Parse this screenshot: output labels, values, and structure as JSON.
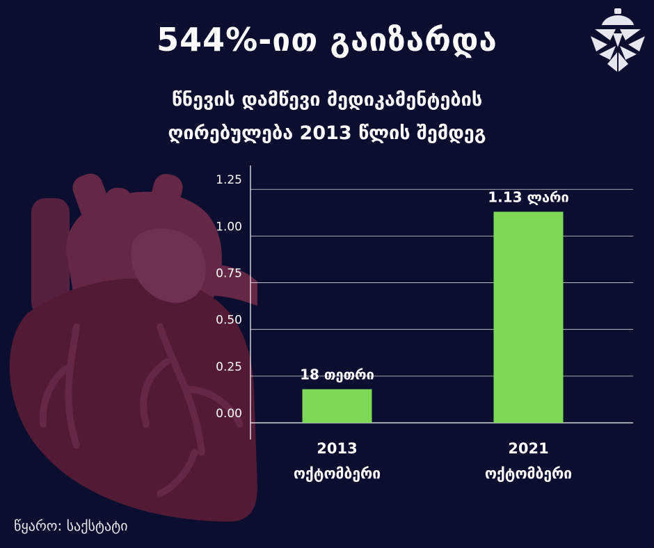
{
  "title": "544%-ით გაიზარდა",
  "subtitle": {
    "line1": "წნევის დამწევი მედიკამენტების",
    "line2": "ღირებულება 2013 წლის შემდეგ"
  },
  "source": "წყარო: საქსტატი",
  "colors": {
    "background": "#0b0e2e",
    "bar": "#7ed957",
    "heart": "#6e2440",
    "logo": "#e6e6ee"
  },
  "icons": {
    "logo": "pinecone-icon",
    "illustration": "heart-icon"
  },
  "chart_data": {
    "type": "bar",
    "categories": [
      {
        "line1": "2013",
        "line2": "ოქტომბერი"
      },
      {
        "line1": "2021",
        "line2": "ოქტომბერი"
      }
    ],
    "values": [
      0.18,
      1.13
    ],
    "data_labels": [
      "18 თეთრი",
      "1.13 ლარი"
    ],
    "y_ticks": [
      0.0,
      0.25,
      0.5,
      0.75,
      1.0,
      1.25
    ],
    "y_tick_labels": [
      "0.00",
      "0.25",
      "0.50",
      "0.75",
      "1.00",
      "1.25"
    ],
    "ylim": [
      0,
      1.37
    ],
    "grid": true,
    "xlabel": "",
    "ylabel": ""
  }
}
